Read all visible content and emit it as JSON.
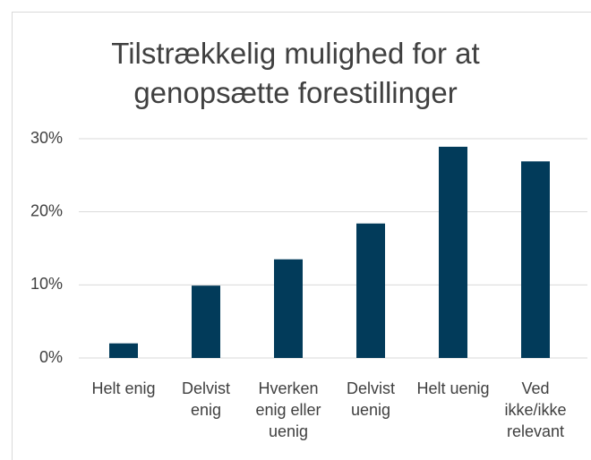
{
  "chart_data": {
    "type": "bar",
    "title": "Tilstrækkelig mulighed for at genopsætte forestillinger",
    "categories": [
      "Helt enig",
      "Delvist enig",
      "Hverken enig eller uenig",
      "Delvist uenig",
      "Helt uenig",
      "Ved ikke/ikke relevant"
    ],
    "values": [
      2,
      9.9,
      13.5,
      18.4,
      28.9,
      26.9
    ],
    "color": "#023b5a",
    "ylim": [
      0,
      30
    ],
    "yticks": [
      {
        "value": 0,
        "label": "0%"
      },
      {
        "value": 10,
        "label": "10%"
      },
      {
        "value": 20,
        "label": "20%"
      },
      {
        "value": 30,
        "label": "30%"
      }
    ],
    "grid": true
  }
}
